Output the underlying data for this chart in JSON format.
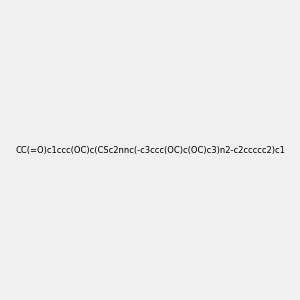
{
  "smiles": "CC(=O)c1ccc(OC)c(CSc2nnc(-c3ccc(OC)c(OC)c3)n2-c2ccccc2)c1",
  "bg_color": "#f0f0f0",
  "title": "",
  "size": [
    300,
    300
  ]
}
